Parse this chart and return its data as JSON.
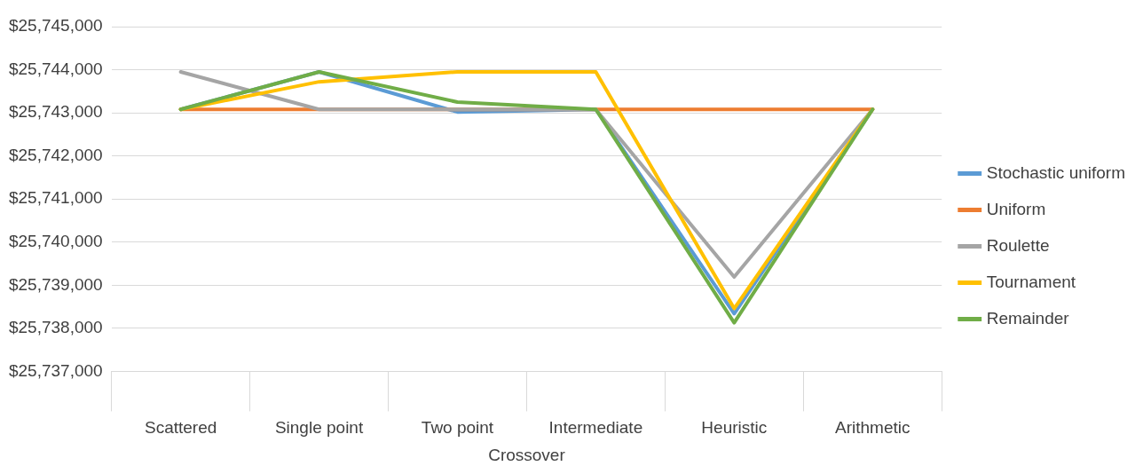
{
  "chart_data": {
    "type": "line",
    "xlabel": "Crossover",
    "categories": [
      "Scattered",
      "Single point",
      "Two point",
      "Intermediate",
      "Heuristic",
      "Arithmetic"
    ],
    "series": [
      {
        "name": "Stochastic uniform",
        "color": "#5b9bd5",
        "values": [
          25743080,
          25743950,
          25743020,
          25743080,
          25738340,
          25743080
        ]
      },
      {
        "name": "Uniform",
        "color": "#ed7d31",
        "values": [
          25743080,
          25743080,
          25743080,
          25743080,
          25743080,
          25743080
        ]
      },
      {
        "name": "Roulette",
        "color": "#a5a5a5",
        "values": [
          25743950,
          25743080,
          25743080,
          25743080,
          25739190,
          25743080
        ]
      },
      {
        "name": "Tournament",
        "color": "#ffc000",
        "values": [
          25743080,
          25743720,
          25743950,
          25743950,
          25738460,
          25743080
        ]
      },
      {
        "name": "Remainder",
        "color": "#70ad47",
        "values": [
          25743080,
          25743950,
          25743250,
          25743080,
          25738130,
          25743080
        ]
      }
    ],
    "ylim": [
      25737000,
      25745000
    ],
    "yticks": [
      {
        "value": 25737000,
        "label": "$25,737,000"
      },
      {
        "value": 25738000,
        "label": "$25,738,000"
      },
      {
        "value": 25739000,
        "label": "$25,739,000"
      },
      {
        "value": 25740000,
        "label": "$25,740,000"
      },
      {
        "value": 25741000,
        "label": "$25,741,000"
      },
      {
        "value": 25742000,
        "label": "$25,742,000"
      },
      {
        "value": 25743000,
        "label": "$25,743,000"
      },
      {
        "value": 25744000,
        "label": "$25,744,000"
      },
      {
        "value": 25745000,
        "label": "$25,745,000"
      }
    ],
    "grid": "y",
    "legend": "right",
    "marker": "none",
    "line_style": "solid"
  }
}
